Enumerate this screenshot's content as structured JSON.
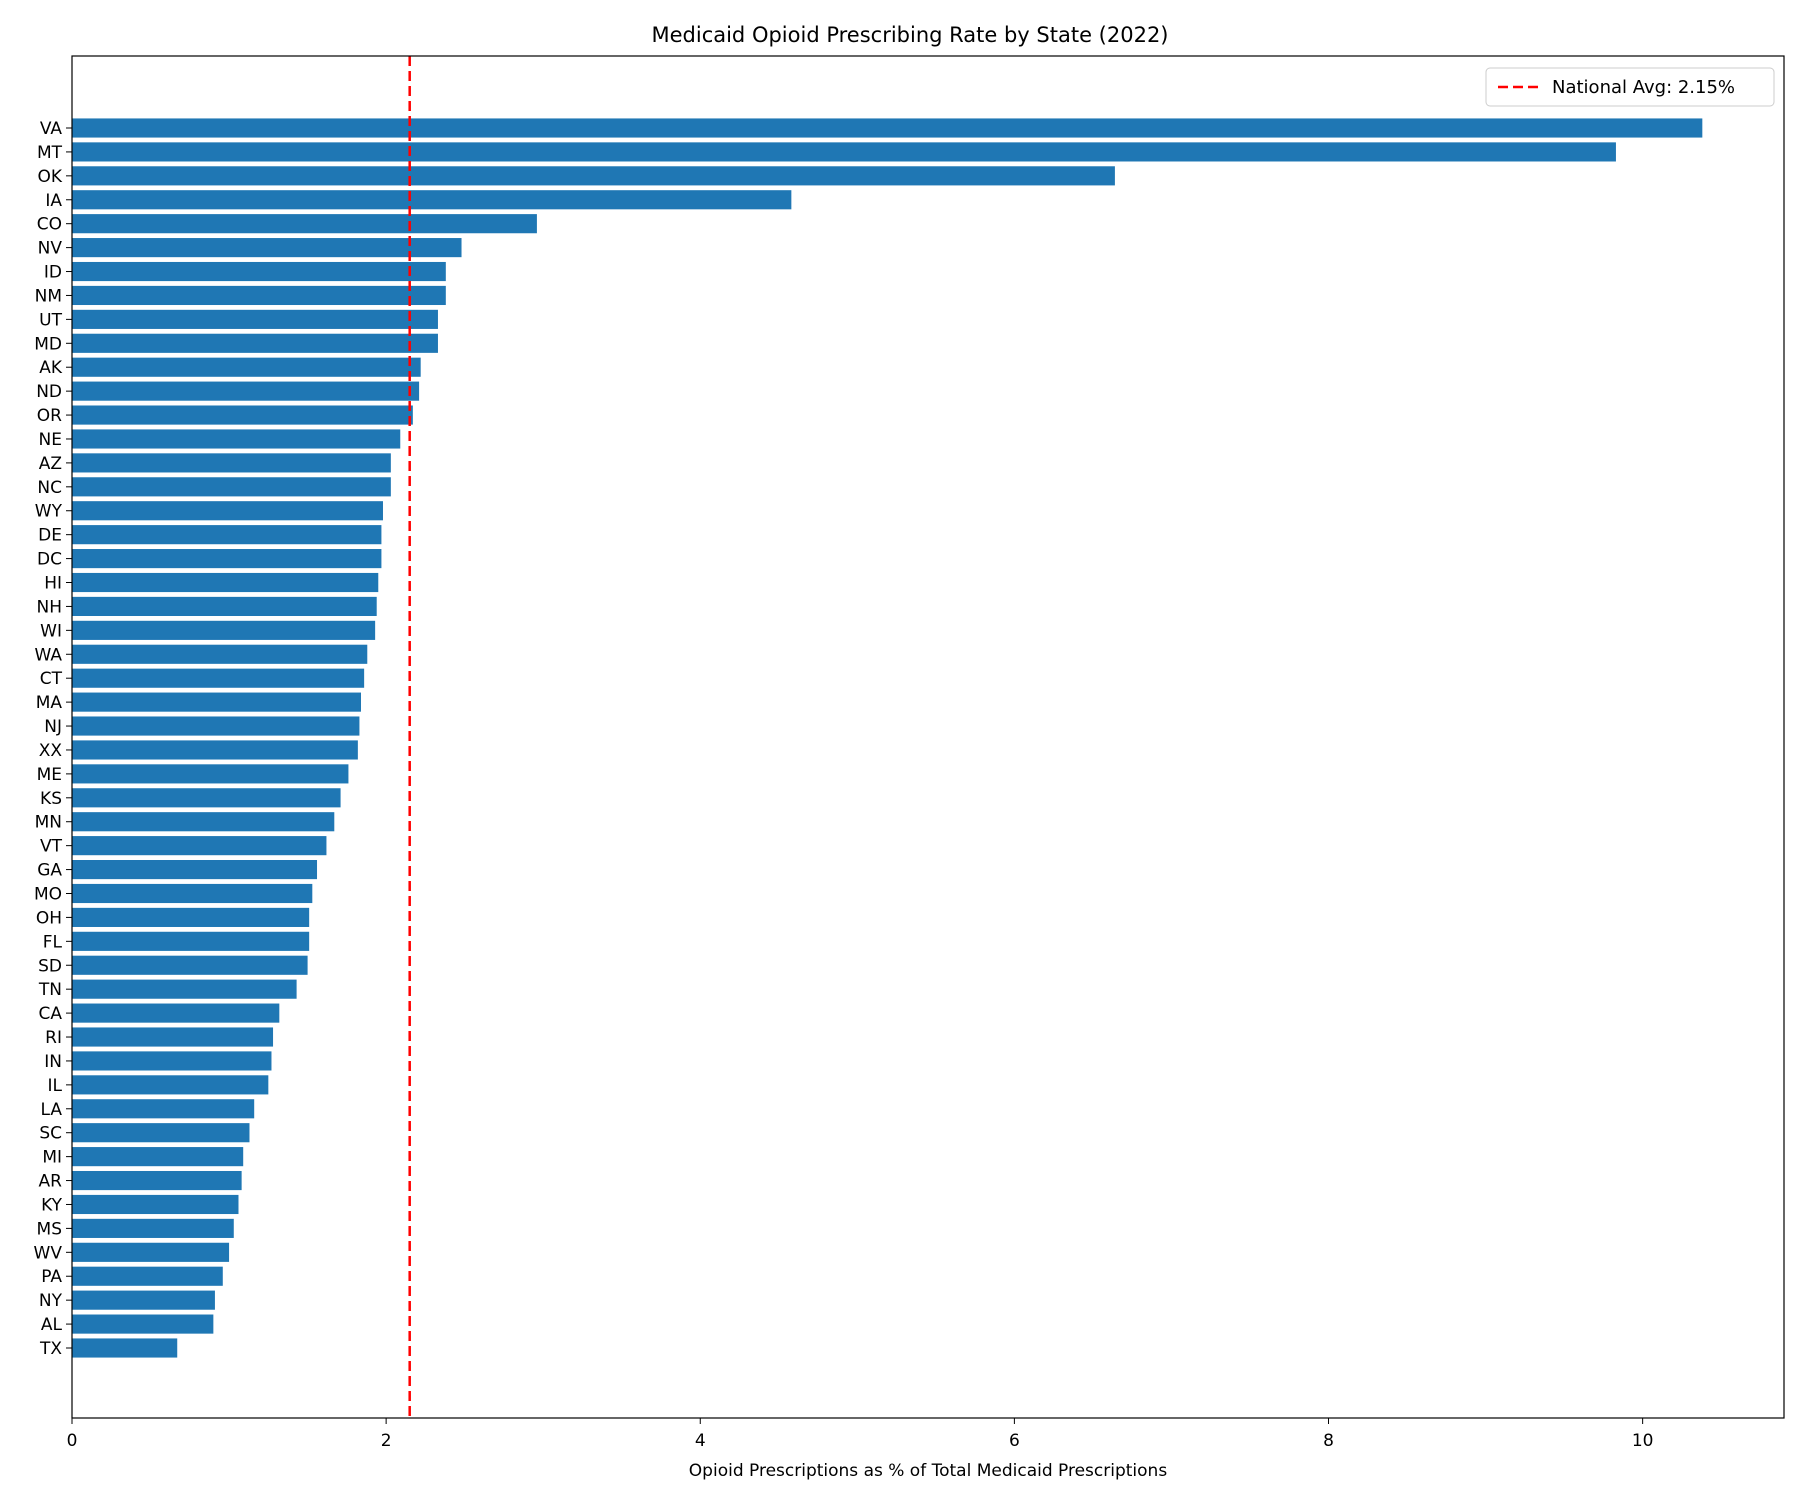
{
  "chart_data": {
    "type": "bar",
    "orientation": "horizontal",
    "title": "Medicaid Opioid Prescribing Rate by State (2022)",
    "xlabel": "Opioid Prescriptions as % of Total Medicaid Prescriptions",
    "ylabel": "",
    "xlim": [
      0,
      10.9
    ],
    "xticks": [
      0,
      2,
      4,
      6,
      8,
      10
    ],
    "bar_color": "#1f77b4",
    "reference_line": {
      "value": 2.15,
      "label": "National Avg: 2.15%",
      "color": "#ff0000",
      "style": "dashed"
    },
    "legend": {
      "placement": "top-right",
      "entries": [
        "National Avg: 2.15%"
      ]
    },
    "grid": false,
    "categories": [
      "VA",
      "MT",
      "OK",
      "IA",
      "CO",
      "NV",
      "ID",
      "NM",
      "UT",
      "MD",
      "AK",
      "ND",
      "OR",
      "NE",
      "AZ",
      "NC",
      "WY",
      "DE",
      "DC",
      "HI",
      "NH",
      "WI",
      "WA",
      "CT",
      "MA",
      "NJ",
      "XX",
      "ME",
      "KS",
      "MN",
      "VT",
      "GA",
      "MO",
      "OH",
      "FL",
      "SD",
      "TN",
      "CA",
      "RI",
      "IN",
      "IL",
      "LA",
      "SC",
      "MI",
      "AR",
      "KY",
      "MS",
      "WV",
      "PA",
      "NY",
      "AL",
      "TX"
    ],
    "values": [
      10.38,
      9.83,
      6.64,
      4.58,
      2.96,
      2.48,
      2.38,
      2.38,
      2.33,
      2.33,
      2.22,
      2.21,
      2.17,
      2.09,
      2.03,
      2.03,
      1.98,
      1.97,
      1.97,
      1.95,
      1.94,
      1.93,
      1.88,
      1.86,
      1.84,
      1.83,
      1.82,
      1.76,
      1.71,
      1.67,
      1.62,
      1.56,
      1.53,
      1.51,
      1.51,
      1.5,
      1.43,
      1.32,
      1.28,
      1.27,
      1.25,
      1.16,
      1.13,
      1.09,
      1.08,
      1.06,
      1.03,
      1.0,
      0.96,
      0.91,
      0.9,
      0.67
    ]
  }
}
